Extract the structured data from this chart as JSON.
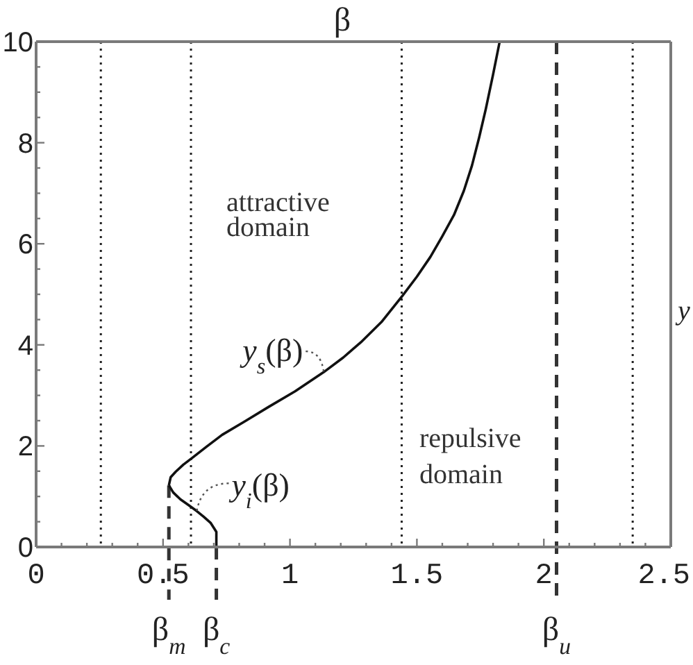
{
  "chart_data": {
    "type": "line",
    "xlabel": "β",
    "ylabel": "y",
    "xlim": [
      0,
      2.5
    ],
    "ylim": [
      0,
      10
    ],
    "xticks": [
      0,
      {
        "value": 0.1,
        "label": null
      },
      {
        "value": 0.2,
        "label": null
      },
      {
        "value": 0.3,
        "label": null
      },
      {
        "value": 0.4,
        "label": null
      },
      0.5,
      {
        "value": 0.6,
        "label": null
      },
      {
        "value": 0.7,
        "label": null
      },
      {
        "value": 0.8,
        "label": null
      },
      {
        "value": 0.9,
        "label": null
      },
      1,
      {
        "value": 1.1,
        "label": null
      },
      {
        "value": 1.2,
        "label": null
      },
      {
        "value": 1.3,
        "label": null
      },
      {
        "value": 1.4,
        "label": null
      },
      1.5,
      {
        "value": 1.6,
        "label": null
      },
      {
        "value": 1.7,
        "label": null
      },
      {
        "value": 1.8,
        "label": null
      },
      {
        "value": 1.9,
        "label": null
      },
      2,
      {
        "value": 2.1,
        "label": null
      },
      {
        "value": 2.2,
        "label": null
      },
      {
        "value": 2.3,
        "label": null
      },
      {
        "value": 2.4,
        "label": null
      },
      2.5
    ],
    "yticks": [
      0,
      {
        "value": 0.5,
        "label": null
      },
      {
        "value": 1,
        "label": null
      },
      {
        "value": 1.5,
        "label": null
      },
      2,
      {
        "value": 2.5,
        "label": null
      },
      {
        "value": 3,
        "label": null
      },
      {
        "value": 3.5,
        "label": null
      },
      4,
      {
        "value": 4.5,
        "label": null
      },
      {
        "value": 5,
        "label": null
      },
      {
        "value": 5.5,
        "label": null
      },
      6,
      {
        "value": 6.5,
        "label": null
      },
      {
        "value": 7,
        "label": null
      },
      {
        "value": 7.5,
        "label": null
      },
      8,
      {
        "value": 8.5,
        "label": null
      },
      {
        "value": 9,
        "label": null
      },
      {
        "value": 9.5,
        "label": null
      },
      10
    ],
    "series": [
      {
        "name": "y$_{s}$(β)",
        "color": "#111111",
        "x": [
          0.523,
          0.53,
          0.55,
          0.58,
          0.614,
          0.67,
          0.733,
          0.82,
          0.915,
          1.02,
          1.133,
          1.21,
          1.279,
          1.36,
          1.443,
          1.5,
          1.553,
          1.6,
          1.646,
          1.685,
          1.717,
          1.745,
          1.771,
          1.8,
          1.826
        ],
        "values": [
          1.22,
          1.38,
          1.49,
          1.63,
          1.76,
          1.98,
          2.22,
          2.48,
          2.77,
          3.08,
          3.46,
          3.75,
          4.05,
          4.45,
          4.97,
          5.35,
          5.74,
          6.15,
          6.57,
          7.05,
          7.55,
          8.1,
          8.66,
          9.35,
          10
        ]
      },
      {
        "name": "y$_{i}$(β)",
        "color": "#111111",
        "x": [
          0.71,
          0.71,
          0.687,
          0.66,
          0.633,
          0.6,
          0.569,
          0.54,
          0.523
        ],
        "values": [
          0,
          0.3,
          0.48,
          0.6,
          0.71,
          0.83,
          0.94,
          1.08,
          1.22
        ]
      }
    ],
    "ref_lines": [
      {
        "axis": "x",
        "value": 0.255,
        "line_style": "dotted",
        "color": "#222222"
      },
      {
        "axis": "x",
        "value": 0.61,
        "line_style": "dotted",
        "color": "#222222"
      },
      {
        "axis": "x",
        "value": 1.44,
        "line_style": "dotted",
        "color": "#222222"
      },
      {
        "axis": "x",
        "value": 2.35,
        "line_style": "dotted",
        "color": "#222222"
      },
      {
        "axis": "x",
        "value": 0.523,
        "label": "β$_{m}$",
        "line_style": "dashed",
        "color": "#333333"
      },
      {
        "axis": "x",
        "value": 0.71,
        "label": "β$_{c}$",
        "line_style": "dashed",
        "color": "#333333"
      },
      {
        "axis": "x",
        "value": 2.05,
        "label": "β$_{u}$",
        "line_style": "dashed",
        "color": "#333333"
      }
    ],
    "annotations": [
      "attractive domain",
      "repulsive domain"
    ]
  }
}
